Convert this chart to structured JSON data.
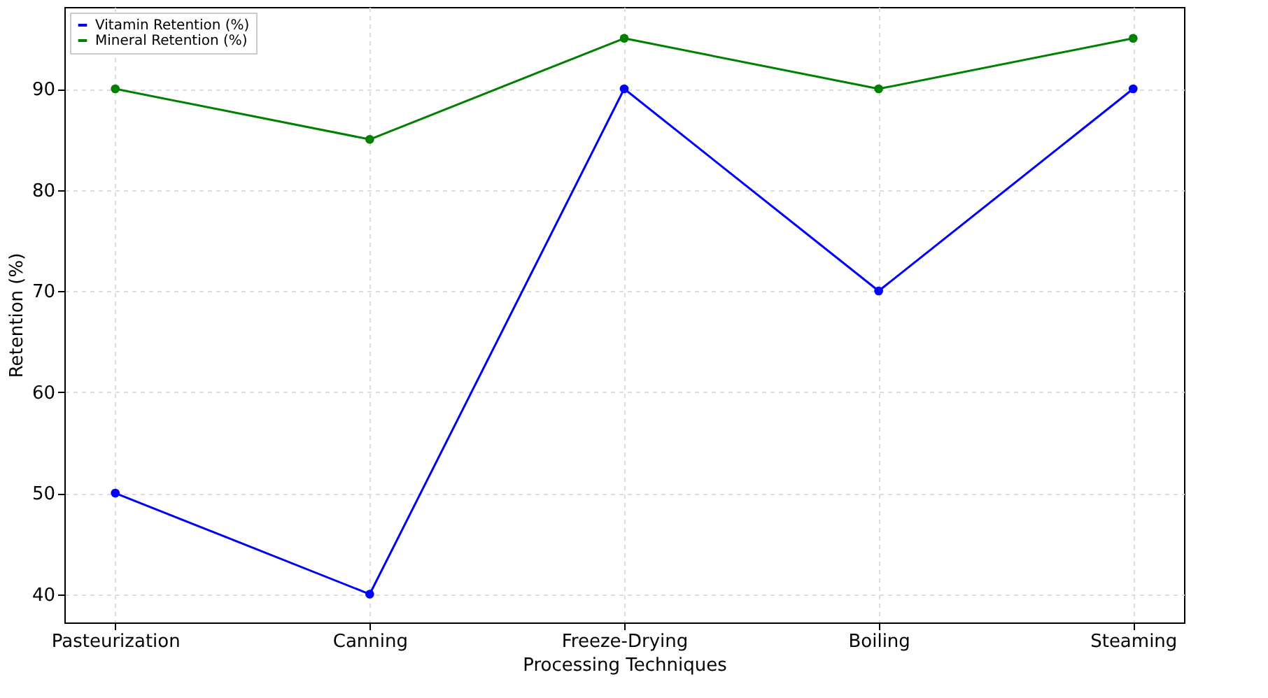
{
  "chart_data": {
    "type": "line",
    "xlabel": "Processing Techniques",
    "ylabel": "Retention (%)",
    "categories": [
      "Pasteurization",
      "Canning",
      "Freeze-Drying",
      "Boiling",
      "Steaming"
    ],
    "series": [
      {
        "name": "Vitamin Retention (%)",
        "color": "#0000ff",
        "values": [
          50,
          40,
          90,
          70,
          90
        ]
      },
      {
        "name": "Mineral Retention (%)",
        "color": "#008000",
        "values": [
          90,
          85,
          95,
          90,
          95
        ]
      }
    ],
    "ylim": [
      37.2,
      98.1
    ],
    "yticks": [
      40,
      50,
      60,
      70,
      80,
      90
    ],
    "grid": true,
    "legend": "top left",
    "marker": "circle",
    "line_style": "solid"
  }
}
